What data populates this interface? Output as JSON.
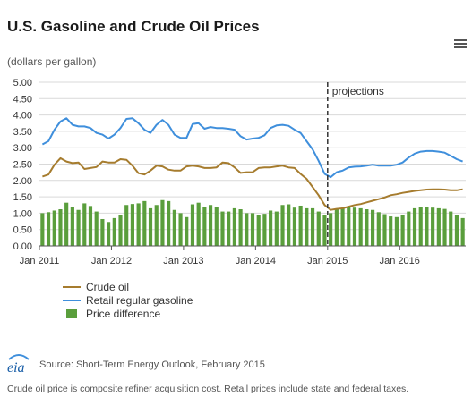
{
  "header": {
    "title": "U.S. Gasoline and Crude Oil Prices",
    "units": "(dollars per gallon)"
  },
  "toolbar": {
    "menu_icon": "hamburger-menu-icon"
  },
  "chart_data": {
    "type": "line+bar",
    "ylim": [
      0,
      5
    ],
    "yticks": [
      "0.00",
      "0.50",
      "1.00",
      "1.50",
      "2.00",
      "2.50",
      "3.00",
      "3.50",
      "4.00",
      "4.50",
      "5.00"
    ],
    "xticks": [
      "Jan 2011",
      "Jan 2012",
      "Jan 2013",
      "Jan 2014",
      "Jan 2015",
      "Jan 2016"
    ],
    "projection_start_index": 48,
    "projection_label": "projections",
    "grid": true,
    "series": [
      {
        "name": "Crude oil",
        "kind": "line",
        "color": "#a67c2e",
        "values": [
          2.12,
          2.18,
          2.48,
          2.68,
          2.58,
          2.53,
          2.55,
          2.35,
          2.38,
          2.41,
          2.58,
          2.55,
          2.55,
          2.65,
          2.63,
          2.45,
          2.22,
          2.18,
          2.3,
          2.45,
          2.43,
          2.33,
          2.3,
          2.3,
          2.43,
          2.45,
          2.43,
          2.38,
          2.38,
          2.4,
          2.55,
          2.53,
          2.4,
          2.23,
          2.25,
          2.25,
          2.38,
          2.4,
          2.4,
          2.43,
          2.45,
          2.4,
          2.38,
          2.2,
          2.05,
          1.8,
          1.55,
          1.25,
          1.1,
          1.13,
          1.15,
          1.2,
          1.25,
          1.28,
          1.33,
          1.38,
          1.43,
          1.48,
          1.55,
          1.58,
          1.62,
          1.65,
          1.68,
          1.7,
          1.72,
          1.73,
          1.73,
          1.72,
          1.7,
          1.7,
          1.73
        ]
      },
      {
        "name": "Retail regular gasoline",
        "kind": "line",
        "color": "#3f8fdc",
        "values": [
          3.1,
          3.2,
          3.55,
          3.8,
          3.9,
          3.7,
          3.65,
          3.65,
          3.6,
          3.45,
          3.4,
          3.28,
          3.4,
          3.6,
          3.88,
          3.9,
          3.75,
          3.55,
          3.45,
          3.7,
          3.85,
          3.7,
          3.4,
          3.3,
          3.3,
          3.72,
          3.75,
          3.58,
          3.63,
          3.6,
          3.6,
          3.58,
          3.55,
          3.35,
          3.25,
          3.28,
          3.3,
          3.38,
          3.6,
          3.68,
          3.7,
          3.67,
          3.55,
          3.45,
          3.2,
          2.95,
          2.6,
          2.2,
          2.1,
          2.25,
          2.3,
          2.4,
          2.42,
          2.43,
          2.45,
          2.48,
          2.45,
          2.45,
          2.45,
          2.48,
          2.55,
          2.7,
          2.82,
          2.88,
          2.9,
          2.9,
          2.88,
          2.85,
          2.75,
          2.65,
          2.58
        ]
      },
      {
        "name": "Price difference",
        "kind": "bar",
        "color": "#5a9e3c",
        "values": [
          1.0,
          1.03,
          1.08,
          1.12,
          1.32,
          1.18,
          1.1,
          1.3,
          1.22,
          1.05,
          0.82,
          0.73,
          0.85,
          0.95,
          1.25,
          1.28,
          1.3,
          1.37,
          1.15,
          1.25,
          1.4,
          1.37,
          1.1,
          1.0,
          0.88,
          1.27,
          1.32,
          1.2,
          1.25,
          1.2,
          1.05,
          1.05,
          1.15,
          1.12,
          1.0,
          1.0,
          0.95,
          0.98,
          1.08,
          1.05,
          1.25,
          1.27,
          1.17,
          1.23,
          1.15,
          1.15,
          1.05,
          0.95,
          1.0,
          1.12,
          1.15,
          1.2,
          1.17,
          1.15,
          1.12,
          1.1,
          1.03,
          0.97,
          0.9,
          0.88,
          0.93,
          1.05,
          1.15,
          1.18,
          1.18,
          1.17,
          1.15,
          1.13,
          1.05,
          0.95,
          0.85
        ]
      }
    ],
    "legend_position": "bottom-left"
  },
  "footer": {
    "logo_text": "eia",
    "source": "Source: Short-Term Energy Outlook, February 2015",
    "note": "Crude oil price is composite refiner acquisition cost. Retail prices include state and federal taxes."
  }
}
